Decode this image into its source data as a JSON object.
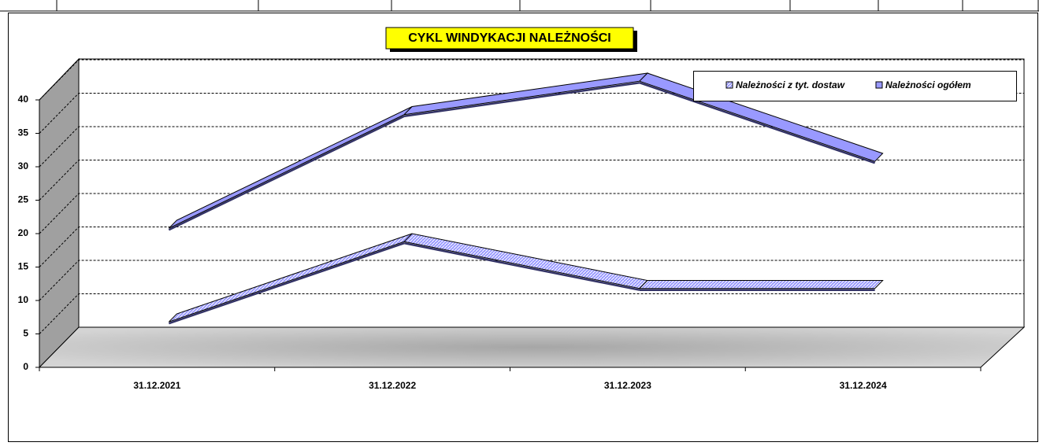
{
  "chart_data": {
    "type": "line3d",
    "title": "CYKL WINDYKACJI  NALEŻNOŚCI",
    "categories": [
      "31.12.2021",
      "31.12.2022",
      "31.12.2023",
      "31.12.2024"
    ],
    "series": [
      {
        "name": "Należności z tyt. dostaw",
        "color": "#9999ff",
        "pattern": "hatched",
        "values": [
          5,
          17,
          10,
          10
        ]
      },
      {
        "name": "Należności ogółem",
        "color": "#9999ff",
        "pattern": "solid",
        "values": [
          19,
          36,
          41,
          29
        ]
      }
    ],
    "ylim": [
      0,
      40
    ],
    "yticks": [
      0,
      5,
      10,
      15,
      20,
      25,
      30,
      35,
      40
    ],
    "grid": true,
    "legend": "top-right"
  }
}
